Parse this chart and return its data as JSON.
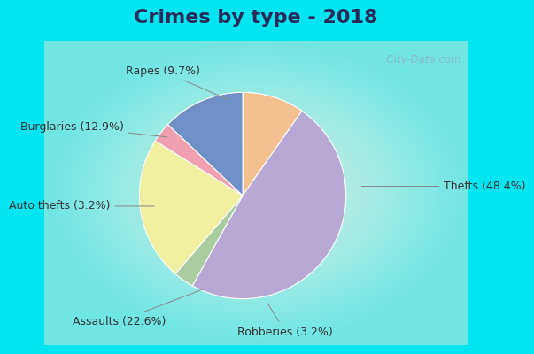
{
  "title": "Crimes by type - 2018",
  "title_fontsize": 16,
  "title_color": "#2a2a5a",
  "label_fontsize": 9,
  "label_color": "#333333",
  "pie_values": [
    48.4,
    3.2,
    22.6,
    3.2,
    12.9,
    9.7
  ],
  "pie_colors": [
    "#b8a9d4",
    "#aacca0",
    "#f0f0a0",
    "#f0a0b0",
    "#7090c8",
    "#f4c090"
  ],
  "pie_labels": [
    "Thefts (48.4%)",
    "Robberies (3.2%)",
    "Assaults (22.6%)",
    "Auto thefts (3.2%)",
    "Burglaries (12.9%)",
    "Rapes (9.7%)"
  ],
  "startangle": 90,
  "bg_outer": "#00e5f0",
  "bg_inner_top": "#d0eee8",
  "bg_inner_bottom": "#c8e8d8",
  "watermark": "  City-Data.com",
  "watermark_color": "#90b8c0",
  "border_color": "#00d8e8"
}
